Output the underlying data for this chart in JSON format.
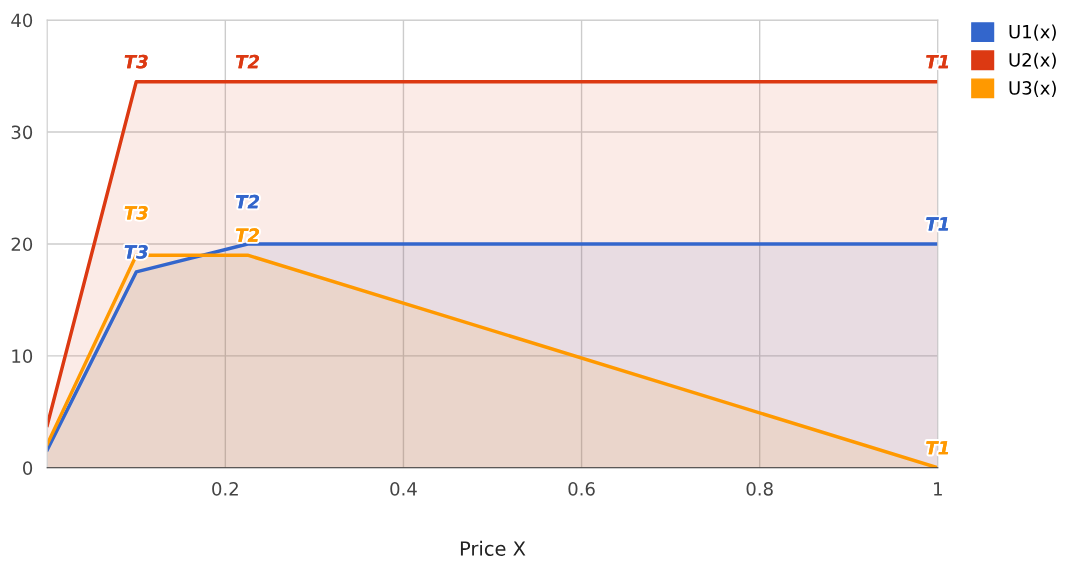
{
  "chart_data": {
    "type": "area",
    "xlabel": "Price X",
    "x": [
      0,
      0.1,
      0.225,
      1
    ],
    "series": [
      {
        "name": "U1(x)",
        "color": "#3366cc",
        "values": [
          1.6,
          17.5,
          20,
          20
        ]
      },
      {
        "name": "U2(x)",
        "color": "#dc3912",
        "values": [
          3.8,
          34.5,
          34.5,
          34.5
        ]
      },
      {
        "name": "U3(x)",
        "color": "#ff9900",
        "values": [
          2.1,
          19,
          19,
          0
        ]
      }
    ],
    "annotations": [
      {
        "text": "T3",
        "x": 0.1,
        "y": 34.5
      },
      {
        "text": "T2",
        "x": 0.225,
        "y": 34.5
      },
      {
        "text": "T1",
        "x": 1,
        "y": 34.5
      },
      {
        "text": "T3",
        "x": 0.1,
        "y": 17.5
      },
      {
        "text": "T2",
        "x": 0.225,
        "y": 20
      },
      {
        "text": "T1",
        "x": 1,
        "y": 20
      },
      {
        "text": "T3",
        "x": 0.1,
        "y": 19
      },
      {
        "text": "T2",
        "x": 0.225,
        "y": 19
      },
      {
        "text": "T1",
        "x": 1,
        "y": 0
      }
    ],
    "xlim": [
      0,
      1
    ],
    "xticks": [
      0.2,
      0.4,
      0.6,
      0.8,
      1
    ],
    "ylim": [
      0,
      40
    ],
    "yticks": [
      0,
      10,
      20,
      30,
      40
    ],
    "grid": true,
    "legend": "top right"
  }
}
